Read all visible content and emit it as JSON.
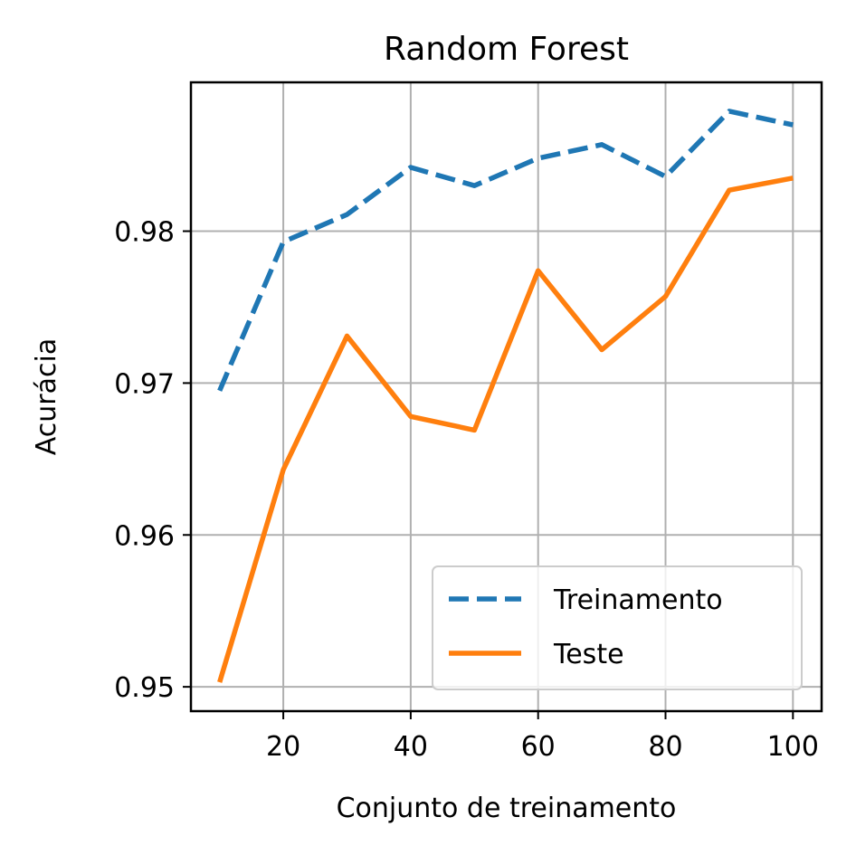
{
  "chart_data": {
    "type": "line",
    "title": "Random Forest",
    "xlabel": "Conjunto de treinamento",
    "ylabel": "Acurácia",
    "xlim": [
      5.5,
      104.5
    ],
    "ylim": [
      0.9484,
      0.9898
    ],
    "xticks": [
      20,
      40,
      60,
      80,
      100
    ],
    "xtick_labels": [
      "20",
      "40",
      "60",
      "80",
      "100"
    ],
    "yticks": [
      0.95,
      0.96,
      0.97,
      0.98
    ],
    "ytick_labels": [
      "0.95",
      "0.96",
      "0.97",
      "0.98"
    ],
    "grid": true,
    "legend_position": "lower-right",
    "x": [
      10,
      20,
      30,
      40,
      50,
      60,
      70,
      80,
      90,
      100
    ],
    "series": [
      {
        "name": "Treinamento",
        "color": "#1f77b4",
        "linestyle": "dashed",
        "values": [
          0.9695,
          0.9793,
          0.9811,
          0.9842,
          0.983,
          0.9848,
          0.9857,
          0.9836,
          0.9879,
          0.987
        ]
      },
      {
        "name": "Teste",
        "color": "#ff7f0e",
        "linestyle": "solid",
        "values": [
          0.9503,
          0.9643,
          0.9731,
          0.9678,
          0.9669,
          0.9774,
          0.9722,
          0.9757,
          0.9827,
          0.9835
        ]
      }
    ]
  }
}
